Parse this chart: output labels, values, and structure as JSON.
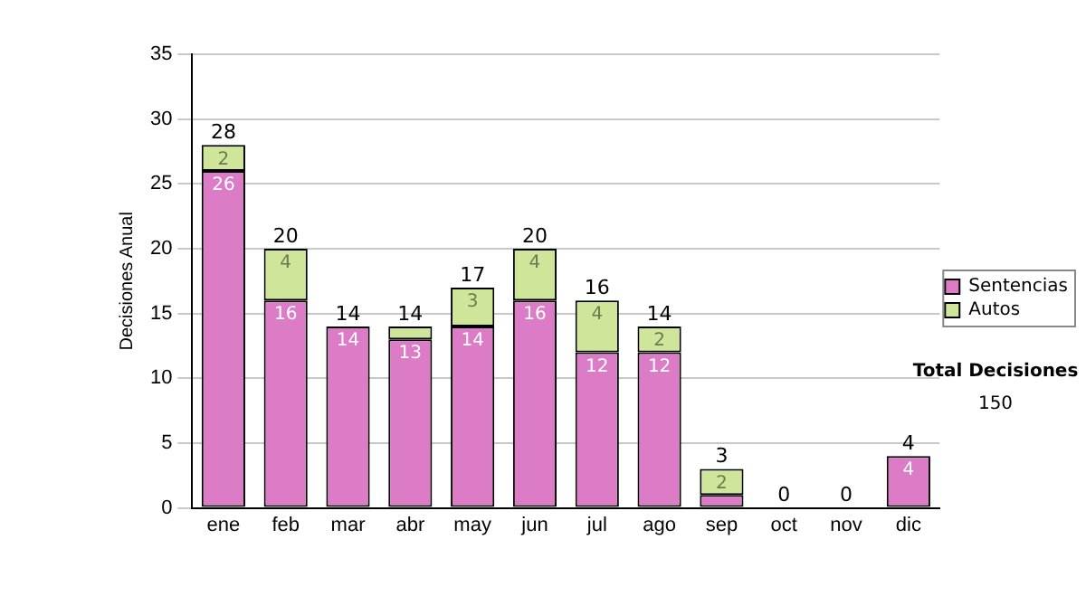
{
  "chart_data": {
    "type": "bar",
    "stacked": true,
    "ylabel": "Decisiones Anual",
    "categories": [
      "ene",
      "feb",
      "mar",
      "abr",
      "may",
      "jun",
      "jul",
      "ago",
      "sep",
      "oct",
      "nov",
      "dic"
    ],
    "series": [
      {
        "name": "Sentencias",
        "color": "#dd7cc6",
        "values": [
          26,
          16,
          14,
          13,
          14,
          16,
          12,
          12,
          1,
          0,
          0,
          4
        ],
        "value_labels": [
          "26",
          "16",
          "14",
          "13",
          "14",
          "16",
          "12",
          "12",
          null,
          null,
          null,
          "4"
        ]
      },
      {
        "name": "Autos",
        "color": "#cfe69a",
        "values": [
          2,
          4,
          0,
          1,
          3,
          4,
          4,
          2,
          2,
          0,
          0,
          0
        ],
        "value_labels": [
          "2",
          "4",
          null,
          null,
          "3",
          "4",
          "4",
          "2",
          "2",
          null,
          null,
          null
        ]
      }
    ],
    "totals": [
      "28",
      "20",
      "14",
      "14",
      "17",
      "20",
      "16",
      "14",
      "3",
      "0",
      "0",
      "4"
    ],
    "ylim": [
      0,
      35
    ],
    "yticks": [
      0,
      5,
      10,
      15,
      20,
      25,
      30,
      35
    ],
    "grid": "y",
    "legend": "right",
    "annotations": [
      "Total Decisiones",
      "150"
    ]
  }
}
